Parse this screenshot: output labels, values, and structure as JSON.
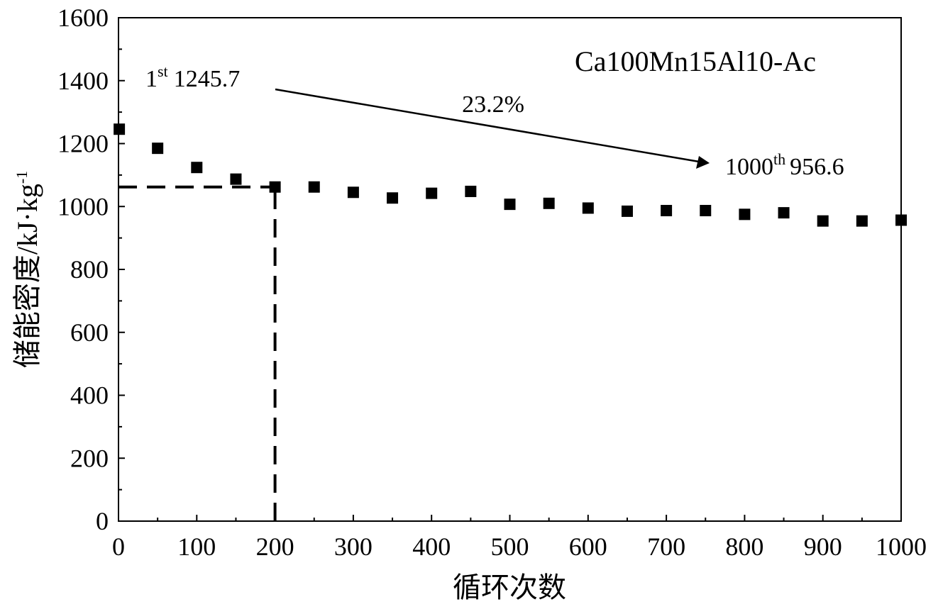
{
  "chart_data": {
    "type": "scatter",
    "xlabel": "循环次数",
    "ylabel": "储能密度/kJ·kg",
    "ylabel_superscript": "-1",
    "xlim": [
      0,
      1000
    ],
    "ylim": [
      0,
      1600
    ],
    "x_ticks": [
      0,
      100,
      200,
      300,
      400,
      500,
      600,
      700,
      800,
      900,
      1000
    ],
    "y_ticks": [
      0,
      200,
      400,
      600,
      800,
      1000,
      1200,
      1400,
      1600
    ],
    "x_tick_labels": [
      "0",
      "100",
      "200",
      "300",
      "400",
      "500",
      "600",
      "700",
      "800",
      "900",
      "1000"
    ],
    "y_tick_labels": [
      "0",
      "200",
      "400",
      "600",
      "800",
      "1000",
      "1200",
      "1400",
      "1600"
    ],
    "grid": false,
    "marker": "square",
    "series": [
      {
        "name": "Ca100Mn15Al10-Ac",
        "color": "#000000",
        "x": [
          1,
          50,
          100,
          150,
          200,
          250,
          300,
          350,
          400,
          450,
          500,
          550,
          600,
          650,
          700,
          750,
          800,
          850,
          900,
          950,
          1000
        ],
        "y": [
          1245.7,
          1185,
          1124,
          1087,
          1062,
          1062,
          1045,
          1027,
          1042,
          1048,
          1007,
          1010,
          995,
          985,
          987,
          987,
          975,
          980,
          954,
          954,
          956.6
        ]
      }
    ],
    "reference_lines": [
      {
        "style": "dashed",
        "from": [
          0,
          1062
        ],
        "to": [
          200,
          1062
        ]
      },
      {
        "style": "dashed",
        "from": [
          200,
          0
        ],
        "to": [
          200,
          1062
        ]
      }
    ],
    "annotations": {
      "start": {
        "base": "1",
        "sup": "st",
        "value": "1245.7"
      },
      "end": {
        "base": "1000",
        "sup": "th",
        "value": "956.6"
      },
      "change": "23.2%"
    }
  }
}
